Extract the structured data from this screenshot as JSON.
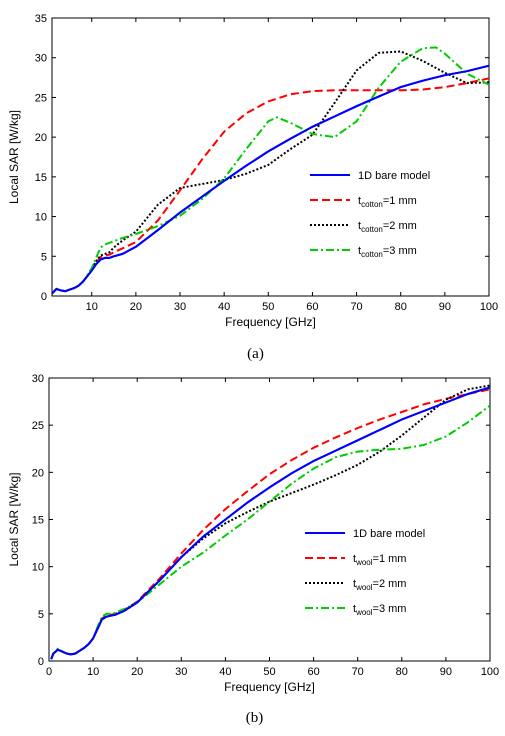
{
  "chart_data": [
    {
      "type": "line",
      "xlabel": "Frequency [GHz]",
      "ylabel": "Local SAR [W/kg]",
      "caption": "(a)",
      "xlim": [
        1,
        100
      ],
      "ylim": [
        0,
        35
      ],
      "xticks": [
        10,
        20,
        30,
        40,
        50,
        60,
        70,
        80,
        90,
        100
      ],
      "yticks": [
        0,
        5,
        10,
        15,
        20,
        25,
        30,
        35
      ],
      "legend_position": "lower-right",
      "series": [
        {
          "name": "1D bare model",
          "legend_main": "1D bare model",
          "legend_sub": "",
          "legend_tail": "",
          "color": "#0000ff",
          "dash": "solid",
          "x": [
            1,
            2,
            3,
            4,
            5,
            6,
            7,
            8,
            9,
            10,
            11,
            12,
            13,
            14,
            15,
            17,
            20,
            25,
            30,
            35,
            40,
            45,
            50,
            55,
            60,
            65,
            70,
            75,
            80,
            85,
            90,
            95,
            100
          ],
          "y": [
            0.3,
            0.9,
            0.7,
            0.6,
            0.8,
            1.0,
            1.3,
            1.8,
            2.5,
            3.2,
            4.0,
            4.6,
            4.8,
            4.8,
            5.0,
            5.3,
            6.2,
            8.3,
            10.5,
            12.5,
            14.5,
            16.4,
            18.2,
            19.8,
            21.3,
            22.6,
            23.9,
            25.1,
            26.3,
            27.1,
            27.8,
            28.3,
            29.0
          ]
        },
        {
          "name": "t_cotton=1 mm",
          "legend_main": "t",
          "legend_sub": "cotton",
          "legend_tail": "=1 mm",
          "color": "#ff0000",
          "dash": "8,4",
          "x": [
            1,
            2,
            3,
            4,
            5,
            6,
            7,
            8,
            9,
            10,
            11,
            12,
            13,
            14,
            15,
            17,
            20,
            25,
            30,
            35,
            40,
            45,
            50,
            55,
            60,
            65,
            70,
            75,
            80,
            85,
            90,
            95,
            100
          ],
          "y": [
            0.3,
            0.9,
            0.7,
            0.6,
            0.8,
            1.0,
            1.3,
            1.8,
            2.5,
            3.3,
            4.2,
            4.9,
            5.1,
            5.2,
            5.5,
            6.0,
            6.8,
            9.5,
            13.3,
            17.2,
            20.7,
            23.0,
            24.5,
            25.4,
            25.8,
            25.9,
            25.9,
            25.9,
            25.9,
            26.0,
            26.3,
            26.8,
            27.4
          ]
        },
        {
          "name": "t_cotton=2 mm",
          "legend_main": "t",
          "legend_sub": "cotton",
          "legend_tail": "=2 mm",
          "color": "#000000",
          "dash": "2,2",
          "x": [
            1,
            2,
            3,
            4,
            5,
            6,
            7,
            8,
            9,
            10,
            11,
            12,
            13,
            14,
            15,
            17,
            20,
            25,
            30,
            35,
            40,
            45,
            50,
            55,
            60,
            65,
            70,
            75,
            80,
            85,
            90,
            95,
            100
          ],
          "y": [
            0.3,
            0.9,
            0.7,
            0.6,
            0.8,
            1.0,
            1.3,
            1.8,
            2.5,
            3.4,
            4.4,
            5.1,
            5.3,
            5.5,
            6.1,
            7.0,
            8.1,
            11.5,
            13.6,
            14.1,
            14.6,
            15.4,
            16.5,
            18.5,
            20.3,
            24.3,
            28.4,
            30.6,
            30.8,
            29.6,
            28.1,
            26.8,
            26.9
          ]
        },
        {
          "name": "t_cotton=3 mm",
          "legend_main": "t",
          "legend_sub": "cotton",
          "legend_tail": "=3 mm",
          "color": "#00cc00",
          "dash": "8,3,2,3",
          "x": [
            1,
            2,
            3,
            4,
            5,
            6,
            7,
            8,
            9,
            10,
            11,
            12,
            13,
            14,
            15,
            17,
            20,
            25,
            30,
            35,
            40,
            45,
            50,
            52,
            55,
            60,
            65,
            70,
            75,
            80,
            85,
            88,
            90,
            95,
            100
          ],
          "y": [
            0.3,
            0.9,
            0.7,
            0.6,
            0.8,
            1.0,
            1.3,
            1.8,
            2.6,
            3.5,
            4.8,
            6.1,
            6.5,
            6.7,
            6.9,
            7.3,
            7.8,
            8.8,
            10.1,
            12.2,
            14.8,
            18.5,
            22.0,
            22.5,
            21.8,
            20.4,
            20.0,
            22.0,
            26.2,
            29.5,
            31.2,
            31.3,
            30.5,
            28.0,
            26.6
          ]
        }
      ]
    },
    {
      "type": "line",
      "xlabel": "Frequency [GHz]",
      "ylabel": "Local SAR [W/kg]",
      "caption": "(b)",
      "xlim": [
        0,
        100
      ],
      "ylim": [
        0,
        30
      ],
      "xticks": [
        0,
        10,
        20,
        30,
        40,
        50,
        60,
        70,
        80,
        90,
        100
      ],
      "yticks": [
        0,
        5,
        10,
        15,
        20,
        25,
        30
      ],
      "legend_position": "lower-right",
      "series": [
        {
          "name": "1D bare model",
          "legend_main": "1D bare model",
          "legend_sub": "",
          "legend_tail": "",
          "color": "#0000ff",
          "dash": "solid",
          "x": [
            0.5,
            1,
            2,
            3,
            4,
            5,
            6,
            7,
            8,
            9,
            10,
            11,
            12,
            13,
            14,
            15,
            17,
            20,
            25,
            30,
            35,
            40,
            45,
            50,
            55,
            60,
            65,
            70,
            75,
            80,
            85,
            90,
            95,
            100
          ],
          "y": [
            0.2,
            0.8,
            1.2,
            1.0,
            0.8,
            0.7,
            0.8,
            1.1,
            1.4,
            1.8,
            2.4,
            3.4,
            4.4,
            4.7,
            4.8,
            4.9,
            5.3,
            6.2,
            8.5,
            11.0,
            13.2,
            15.0,
            16.8,
            18.4,
            19.9,
            21.2,
            22.3,
            23.4,
            24.5,
            25.6,
            26.5,
            27.4,
            28.3,
            29.0
          ]
        },
        {
          "name": "t_wool=1 mm",
          "legend_main": "t",
          "legend_sub": "wool",
          "legend_tail": "=1 mm",
          "color": "#ff0000",
          "dash": "8,4",
          "x": [
            0.5,
            1,
            2,
            3,
            4,
            5,
            6,
            7,
            8,
            9,
            10,
            11,
            12,
            13,
            14,
            15,
            17,
            20,
            25,
            30,
            35,
            40,
            45,
            50,
            55,
            60,
            65,
            70,
            75,
            80,
            85,
            90,
            95,
            100
          ],
          "y": [
            0.2,
            0.8,
            1.2,
            1.0,
            0.8,
            0.7,
            0.8,
            1.1,
            1.4,
            1.8,
            2.4,
            3.5,
            4.5,
            4.8,
            4.9,
            5.0,
            5.4,
            6.3,
            8.7,
            11.4,
            13.9,
            16.1,
            18.0,
            19.8,
            21.3,
            22.6,
            23.7,
            24.7,
            25.6,
            26.4,
            27.2,
            27.8,
            28.3,
            28.8
          ]
        },
        {
          "name": "t_wool=2 mm",
          "legend_main": "t",
          "legend_sub": "wool",
          "legend_tail": "=2 mm",
          "color": "#000000",
          "dash": "2,2",
          "x": [
            0.5,
            1,
            2,
            3,
            4,
            5,
            6,
            7,
            8,
            9,
            10,
            11,
            12,
            13,
            14,
            15,
            17,
            20,
            25,
            30,
            35,
            40,
            45,
            50,
            55,
            60,
            65,
            70,
            75,
            80,
            85,
            90,
            95,
            100
          ],
          "y": [
            0.2,
            0.8,
            1.2,
            1.0,
            0.8,
            0.7,
            0.8,
            1.1,
            1.4,
            1.8,
            2.4,
            3.4,
            4.4,
            4.7,
            4.8,
            4.9,
            5.3,
            6.2,
            8.5,
            11.0,
            13.0,
            14.6,
            15.8,
            16.9,
            17.8,
            18.7,
            19.7,
            20.8,
            22.2,
            23.9,
            25.8,
            27.7,
            28.8,
            29.2
          ]
        },
        {
          "name": "t_wool=3 mm",
          "legend_main": "t",
          "legend_sub": "wool",
          "legend_tail": "=3 mm",
          "color": "#00cc00",
          "dash": "8,3,2,3",
          "x": [
            0.5,
            1,
            2,
            3,
            4,
            5,
            6,
            7,
            8,
            9,
            10,
            11,
            12,
            13,
            14,
            15,
            17,
            20,
            25,
            30,
            35,
            40,
            45,
            50,
            55,
            60,
            65,
            70,
            75,
            80,
            85,
            90,
            95,
            100
          ],
          "y": [
            0.2,
            0.8,
            1.3,
            1.0,
            0.8,
            0.7,
            0.8,
            1.1,
            1.4,
            1.8,
            2.4,
            3.6,
            4.7,
            5.0,
            5.0,
            5.1,
            5.5,
            6.2,
            8.1,
            10.0,
            11.5,
            13.3,
            15.0,
            16.9,
            18.8,
            20.4,
            21.6,
            22.2,
            22.4,
            22.5,
            22.9,
            23.8,
            25.3,
            27.1
          ]
        }
      ]
    }
  ]
}
